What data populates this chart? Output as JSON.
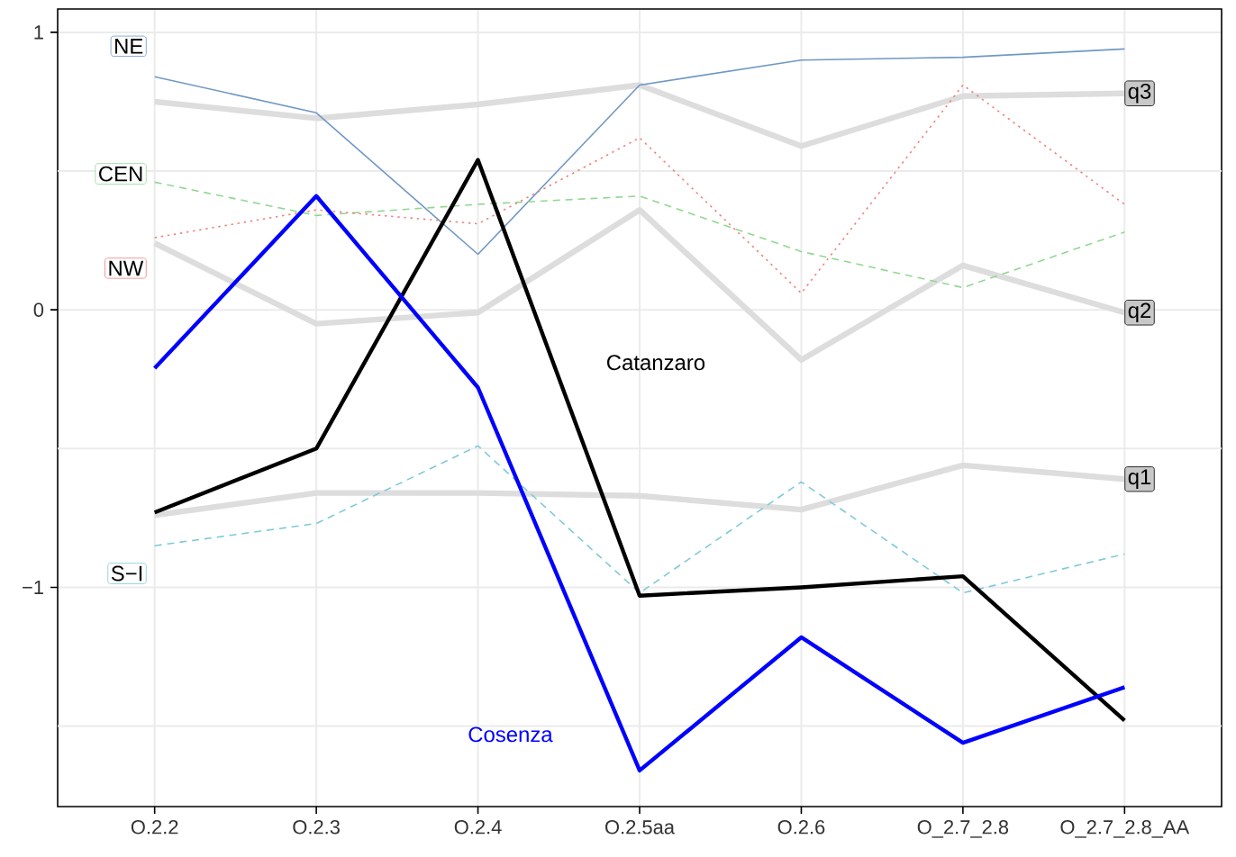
{
  "chart_data": {
    "type": "line",
    "categories": [
      "O.2.2",
      "O.2.3",
      "O.2.4",
      "O.2.5aa",
      "O.2.6",
      "O_2.7_2.8",
      "O_2.7_2.8_AA"
    ],
    "ylim": [
      -1.79,
      1.084
    ],
    "yticks": [
      {
        "value": -1.5,
        "label": null
      },
      {
        "value": -1,
        "label": "−1"
      },
      {
        "value": -0.5,
        "label": null
      },
      0,
      {
        "value": 0.5,
        "label": null
      },
      1
    ],
    "grid": true,
    "legend": "left",
    "series": [
      {
        "name": "q3",
        "color": "#dddddd",
        "line_style": "solid",
        "values": [
          0.75,
          0.69,
          0.74,
          0.81,
          0.59,
          0.77,
          0.78
        ]
      },
      {
        "name": "q2",
        "color": "#dddddd",
        "line_style": "solid",
        "values": [
          0.24,
          -0.05,
          -0.01,
          0.36,
          -0.18,
          0.16,
          -0.01
        ]
      },
      {
        "name": "q1",
        "color": "#dddddd",
        "line_style": "solid",
        "values": [
          -0.74,
          -0.66,
          -0.66,
          -0.67,
          -0.72,
          -0.56,
          -0.61
        ]
      },
      {
        "name": "NE",
        "color": "#7098c4",
        "line_style": "solid",
        "values": [
          0.84,
          0.71,
          0.2,
          0.81,
          0.9,
          0.91,
          0.94
        ]
      },
      {
        "name": "CEN",
        "color": "#90d890",
        "line_style": "dashed",
        "values": [
          0.46,
          0.34,
          0.38,
          0.41,
          0.21,
          0.08,
          0.28
        ]
      },
      {
        "name": "NW",
        "color": "#f08080",
        "line_style": "dotted",
        "values": [
          0.26,
          0.36,
          0.31,
          0.62,
          0.06,
          0.81,
          0.38
        ]
      },
      {
        "name": "S−I",
        "color": "#7ecad8",
        "line_style": "dashed",
        "values": [
          -0.85,
          -0.77,
          -0.49,
          -1.02,
          -0.62,
          -1.02,
          -0.88
        ]
      },
      {
        "name": "Catanzaro",
        "color": "#000000",
        "line_style": "solid",
        "values": [
          -0.73,
          -0.5,
          0.54,
          -1.03,
          -1.0,
          -0.96,
          -1.48
        ]
      },
      {
        "name": "Cosenza",
        "color": "#0000ff",
        "line_style": "solid",
        "values": [
          -0.21,
          0.41,
          -0.28,
          -1.66,
          -1.18,
          -1.56,
          -1.36
        ]
      }
    ]
  }
}
